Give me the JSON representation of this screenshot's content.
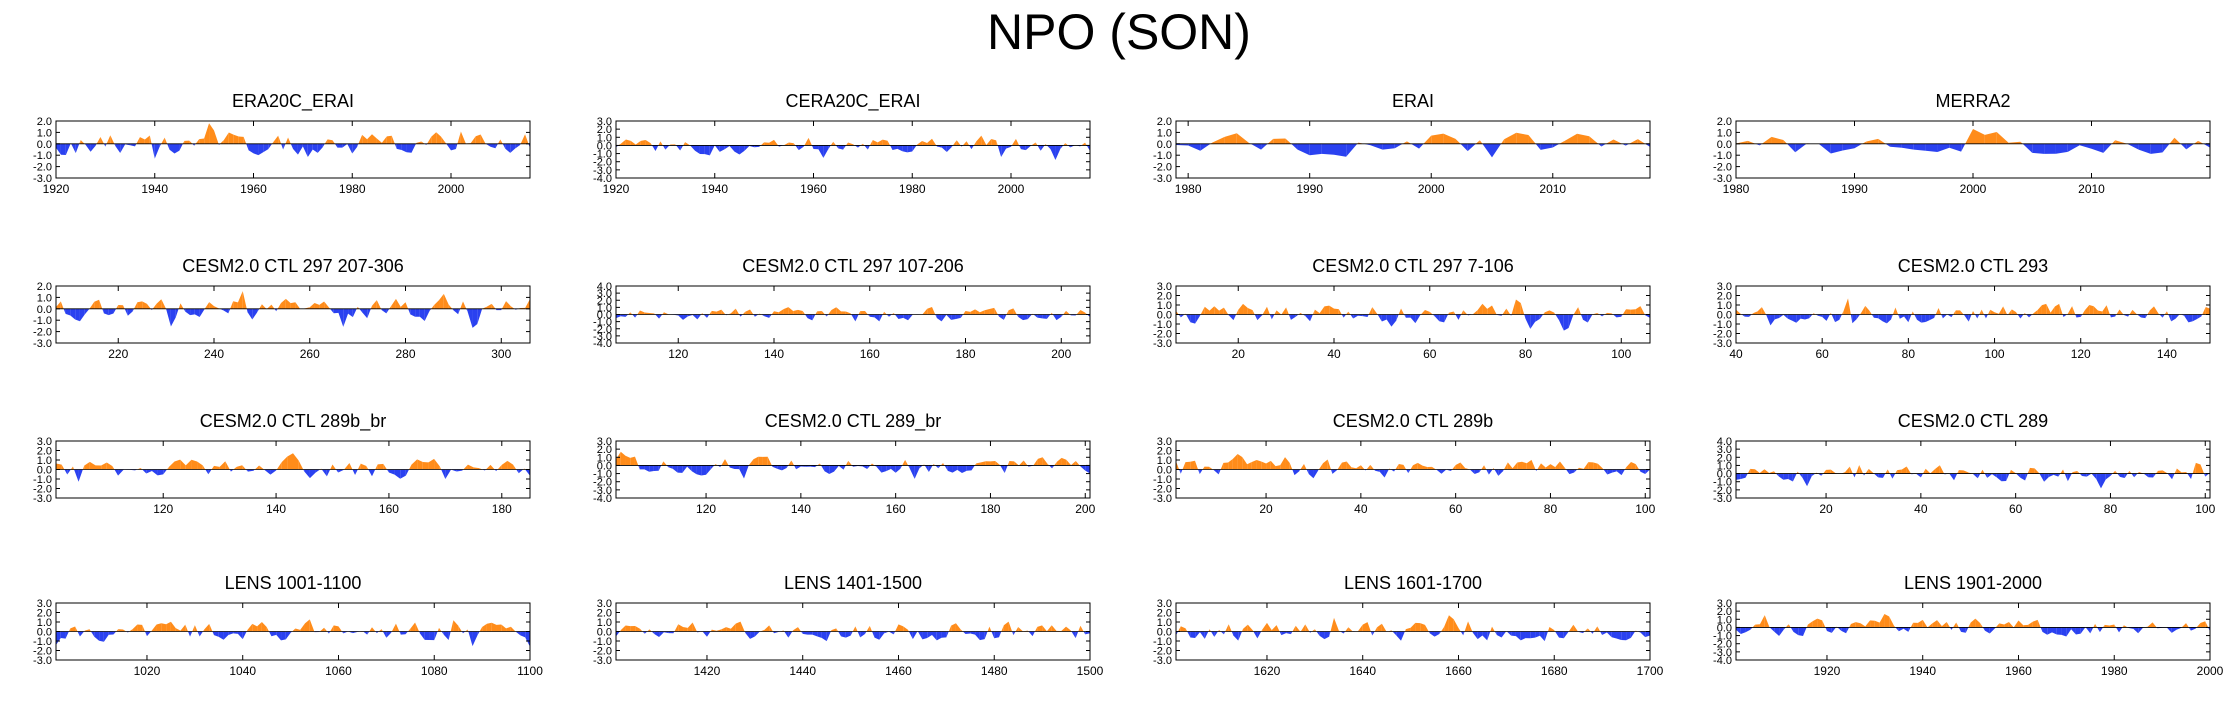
{
  "figure": {
    "title": "NPO (SON)"
  },
  "colors": {
    "positive": "#ff8c1a",
    "negative": "#2a41f0",
    "axis": "#000000"
  },
  "chart_data": [
    {
      "type": "area",
      "title": "ERA20C_ERAI",
      "xlim": [
        1920,
        2016
      ],
      "ylim": [
        -3.0,
        2.0
      ],
      "yticks": [
        "2.0",
        "1.0",
        "0.0",
        "-1.0",
        "-2.0",
        "-3.0"
      ],
      "xticks": [
        "1920",
        "1940",
        "1960",
        "1980",
        "2000"
      ],
      "xtick_values": [
        1920,
        1940,
        1960,
        1980,
        2000
      ]
    },
    {
      "type": "area",
      "title": "CERA20C_ERAI",
      "xlim": [
        1920,
        2016
      ],
      "ylim": [
        -4.0,
        3.0
      ],
      "yticks": [
        "3.0",
        "2.0",
        "1.0",
        "0.0",
        "-1.0",
        "-2.0",
        "-3.0",
        "-4.0"
      ],
      "xticks": [
        "1920",
        "1940",
        "1960",
        "1980",
        "2000"
      ],
      "xtick_values": [
        1920,
        1940,
        1960,
        1980,
        2000
      ]
    },
    {
      "type": "area",
      "title": "ERAI",
      "xlim": [
        1979,
        2018
      ],
      "ylim": [
        -3.0,
        2.0
      ],
      "yticks": [
        "2.0",
        "1.0",
        "0.0",
        "-1.0",
        "-2.0",
        "-3.0"
      ],
      "xticks": [
        "1980",
        "1990",
        "2000",
        "2010"
      ],
      "xtick_values": [
        1980,
        1990,
        2000,
        2010
      ]
    },
    {
      "type": "area",
      "title": "MERRA2",
      "xlim": [
        1980,
        2020
      ],
      "ylim": [
        -3.0,
        2.0
      ],
      "yticks": [
        "2.0",
        "1.0",
        "0.0",
        "-1.0",
        "-2.0",
        "-3.0"
      ],
      "xticks": [
        "1980",
        "1990",
        "2000",
        "2010"
      ],
      "xtick_values": [
        1980,
        1990,
        2000,
        2010
      ]
    },
    {
      "type": "area",
      "title": "CESM2.0 CTL 297 207-306",
      "xlim": [
        207,
        306
      ],
      "ylim": [
        -3.0,
        2.0
      ],
      "yticks": [
        "2.0",
        "1.0",
        "0.0",
        "-1.0",
        "-2.0",
        "-3.0"
      ],
      "xticks": [
        "220",
        "240",
        "260",
        "280",
        "300"
      ],
      "xtick_values": [
        220,
        240,
        260,
        280,
        300
      ]
    },
    {
      "type": "area",
      "title": "CESM2.0 CTL 297 107-206",
      "xlim": [
        107,
        206
      ],
      "ylim": [
        -4.0,
        4.0
      ],
      "yticks": [
        "4.0",
        "3.0",
        "2.0",
        "1.0",
        "0.0",
        "-1.0",
        "-2.0",
        "-3.0",
        "-4.0"
      ],
      "xticks": [
        "120",
        "140",
        "160",
        "180",
        "200"
      ],
      "xtick_values": [
        120,
        140,
        160,
        180,
        200
      ]
    },
    {
      "type": "area",
      "title": "CESM2.0 CTL 297 7-106",
      "xlim": [
        7,
        106
      ],
      "ylim": [
        -3.0,
        3.0
      ],
      "yticks": [
        "3.0",
        "2.0",
        "1.0",
        "0.0",
        "-1.0",
        "-2.0",
        "-3.0"
      ],
      "xticks": [
        "20",
        "40",
        "60",
        "80",
        "100"
      ],
      "xtick_values": [
        20,
        40,
        60,
        80,
        100
      ]
    },
    {
      "type": "area",
      "title": "CESM2.0 CTL 293",
      "xlim": [
        40,
        150
      ],
      "ylim": [
        -3.0,
        3.0
      ],
      "yticks": [
        "3.0",
        "2.0",
        "1.0",
        "0.0",
        "-1.0",
        "-2.0",
        "-3.0"
      ],
      "xticks": [
        "40",
        "60",
        "80",
        "100",
        "120",
        "140"
      ],
      "xtick_values": [
        40,
        60,
        80,
        100,
        120,
        140
      ]
    },
    {
      "type": "area",
      "title": "CESM2.0 CTL 289b_br",
      "xlim": [
        101,
        185
      ],
      "ylim": [
        -3.0,
        3.0
      ],
      "yticks": [
        "3.0",
        "2.0",
        "1.0",
        "0.0",
        "-1.0",
        "-2.0",
        "-3.0"
      ],
      "xticks": [
        "120",
        "140",
        "160",
        "180"
      ],
      "xtick_values": [
        120,
        140,
        160,
        180
      ]
    },
    {
      "type": "area",
      "title": "CESM2.0 CTL 289_br",
      "xlim": [
        101,
        201
      ],
      "ylim": [
        -4.0,
        3.0
      ],
      "yticks": [
        "3.0",
        "2.0",
        "1.0",
        "0.0",
        "-1.0",
        "-2.0",
        "-3.0",
        "-4.0"
      ],
      "xticks": [
        "120",
        "140",
        "160",
        "180",
        "200"
      ],
      "xtick_values": [
        120,
        140,
        160,
        180,
        200
      ]
    },
    {
      "type": "area",
      "title": "CESM2.0 CTL 289b",
      "xlim": [
        1,
        101
      ],
      "ylim": [
        -3.0,
        3.0
      ],
      "yticks": [
        "3.0",
        "2.0",
        "1.0",
        "0.0",
        "-1.0",
        "-2.0",
        "-3.0"
      ],
      "xticks": [
        "20",
        "40",
        "60",
        "80",
        "100"
      ],
      "xtick_values": [
        20,
        40,
        60,
        80,
        100
      ]
    },
    {
      "type": "area",
      "title": "CESM2.0 CTL 289",
      "xlim": [
        1,
        101
      ],
      "ylim": [
        -3.0,
        4.0
      ],
      "yticks": [
        "4.0",
        "3.0",
        "2.0",
        "1.0",
        "0.0",
        "-1.0",
        "-2.0",
        "-3.0"
      ],
      "xticks": [
        "20",
        "40",
        "60",
        "80",
        "100"
      ],
      "xtick_values": [
        20,
        40,
        60,
        80,
        100
      ]
    },
    {
      "type": "area",
      "title": "LENS 1001-1100",
      "xlim": [
        1001,
        1100
      ],
      "ylim": [
        -3.0,
        3.0
      ],
      "yticks": [
        "3.0",
        "2.0",
        "1.0",
        "0.0",
        "-1.0",
        "-2.0",
        "-3.0"
      ],
      "xticks": [
        "1020",
        "1040",
        "1060",
        "1080",
        "1100"
      ],
      "xtick_values": [
        1020,
        1040,
        1060,
        1080,
        1100
      ]
    },
    {
      "type": "area",
      "title": "LENS 1401-1500",
      "xlim": [
        1401,
        1500
      ],
      "ylim": [
        -3.0,
        3.0
      ],
      "yticks": [
        "3.0",
        "2.0",
        "1.0",
        "0.0",
        "-1.0",
        "-2.0",
        "-3.0"
      ],
      "xticks": [
        "1420",
        "1440",
        "1460",
        "1480",
        "1500"
      ],
      "xtick_values": [
        1420,
        1440,
        1460,
        1480,
        1500
      ]
    },
    {
      "type": "area",
      "title": "LENS 1601-1700",
      "xlim": [
        1601,
        1700
      ],
      "ylim": [
        -3.0,
        3.0
      ],
      "yticks": [
        "3.0",
        "2.0",
        "1.0",
        "0.0",
        "-1.0",
        "-2.0",
        "-3.0"
      ],
      "xticks": [
        "1620",
        "1640",
        "1660",
        "1680",
        "1700"
      ],
      "xtick_values": [
        1620,
        1640,
        1660,
        1680,
        1700
      ]
    },
    {
      "type": "area",
      "title": "LENS 1901-2000",
      "xlim": [
        1901,
        2000
      ],
      "ylim": [
        -4.0,
        3.0
      ],
      "yticks": [
        "3.0",
        "2.0",
        "1.0",
        "0.0",
        "-1.0",
        "-2.0",
        "-3.0",
        "-4.0"
      ],
      "xticks": [
        "1920",
        "1940",
        "1960",
        "1980",
        "2000"
      ],
      "xtick_values": [
        1920,
        1940,
        1960,
        1980,
        2000
      ]
    }
  ]
}
